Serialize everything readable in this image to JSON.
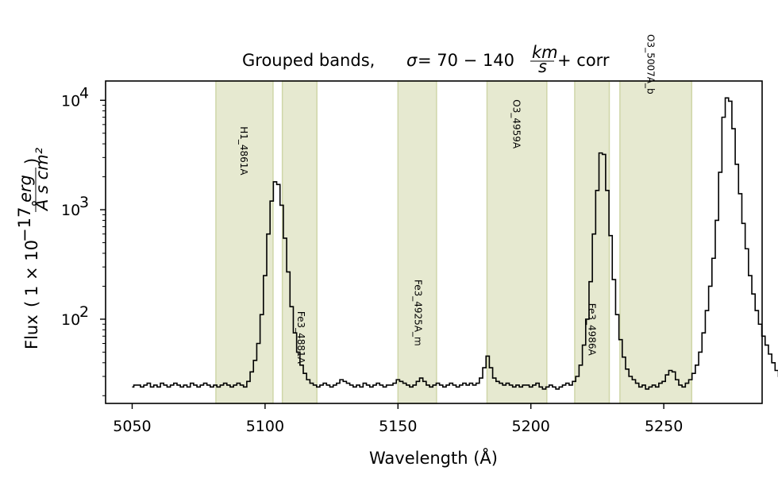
{
  "chart_data": {
    "type": "line",
    "drawstyle": "steps-mid",
    "title": "Grouped bands, σ = 70 − 140 km/s + corr",
    "title_parts": {
      "prefix": "Grouped bands, ",
      "sigma": "σ",
      "equals_range": " = 70 − 140",
      "frac_num": "km",
      "frac_den": "s",
      "suffix": " + corr"
    },
    "xlabel": "Wavelength (Å)",
    "ylabel": "Flux (1 × 10⁻¹⁷ erg/(Å s cm²))",
    "ylabel_parts": {
      "prefix": "Flux ",
      "expr": "1 × 10",
      "exp": "−17",
      "frac_num": "erg",
      "frac_den": "Å s cm²"
    },
    "xlim": [
      5040,
      5287
    ],
    "ylim": [
      17,
      15000
    ],
    "yscale": "log",
    "xticks": [
      5050,
      5100,
      5150,
      5200,
      5250
    ],
    "yticks": [
      {
        "value": 100,
        "base": "10",
        "exp": "2"
      },
      {
        "value": 1000,
        "base": "10",
        "exp": "3"
      },
      {
        "value": 10000,
        "base": "10",
        "exp": "4"
      }
    ],
    "line_color": "#000000",
    "band_color": "#e6e9d0",
    "band_edge_color": "#cfd6a8",
    "bands": [
      {
        "label": "H1_4861A",
        "x0": 5081.5,
        "x1": 5103.0,
        "label_x": 5092,
        "label_flux": 2000
      },
      {
        "label": "Fe3_4881A",
        "x0": 5106.5,
        "x1": 5119.5,
        "label_x": 5113.5,
        "label_flux": 38
      },
      {
        "label": "Fe3_4925A_m",
        "x0": 5150.0,
        "x1": 5164.5,
        "label_x": 5157.5,
        "label_flux": 55
      },
      {
        "label": "O3_4959A",
        "x0": 5183.5,
        "x1": 5206.0,
        "label_x": 5194.5,
        "label_flux": 3500
      },
      {
        "label": "Fe3_4986A",
        "x0": 5216.5,
        "x1": 5229.5,
        "label_x": 5223,
        "label_flux": 45
      },
      {
        "label": "O3_5007A_b",
        "x0": 5233.5,
        "x1": 5260.5,
        "label_x": 5245,
        "label_flux": 11000
      }
    ],
    "spectrum": {
      "x0": 5050,
      "dx": 1.25,
      "flux": [
        24,
        25,
        25,
        24,
        25,
        26,
        24,
        25,
        24,
        26,
        25,
        24,
        25,
        26,
        25,
        24,
        25,
        24,
        26,
        25,
        24,
        25,
        26,
        25,
        24,
        25,
        24,
        25,
        26,
        25,
        24,
        25,
        26,
        25,
        24,
        27,
        33,
        42,
        60,
        110,
        250,
        600,
        1200,
        1800,
        1700,
        1100,
        550,
        270,
        130,
        75,
        50,
        38,
        32,
        28,
        26,
        25,
        24,
        25,
        26,
        25,
        24,
        25,
        26,
        28,
        27,
        26,
        25,
        24,
        25,
        24,
        26,
        25,
        24,
        25,
        26,
        25,
        24,
        25,
        25,
        26,
        28,
        27,
        26,
        25,
        24,
        25,
        27,
        29,
        27,
        25,
        24,
        25,
        26,
        25,
        24,
        25,
        26,
        25,
        24,
        25,
        26,
        25,
        26,
        25,
        26,
        29,
        36,
        46,
        36,
        29,
        27,
        26,
        25,
        26,
        25,
        24,
        25,
        24,
        25,
        25,
        24,
        25,
        26,
        24,
        23,
        24,
        25,
        24,
        23,
        24,
        25,
        26,
        25,
        27,
        30,
        38,
        58,
        100,
        220,
        600,
        1500,
        3300,
        3200,
        1500,
        580,
        230,
        110,
        65,
        45,
        35,
        30,
        28,
        26,
        24,
        25,
        23,
        24,
        25,
        24,
        26,
        27,
        31,
        34,
        33,
        28,
        25,
        24,
        26,
        28,
        32,
        38,
        50,
        75,
        120,
        200,
        360,
        800,
        2200,
        7000,
        10500,
        9800,
        5500,
        2600,
        1400,
        750,
        440,
        250,
        170,
        120,
        90,
        70,
        58,
        48,
        40,
        34,
        30,
        28,
        27,
        26,
        25,
        24,
        25,
        26,
        25,
        25,
        24
      ]
    }
  }
}
